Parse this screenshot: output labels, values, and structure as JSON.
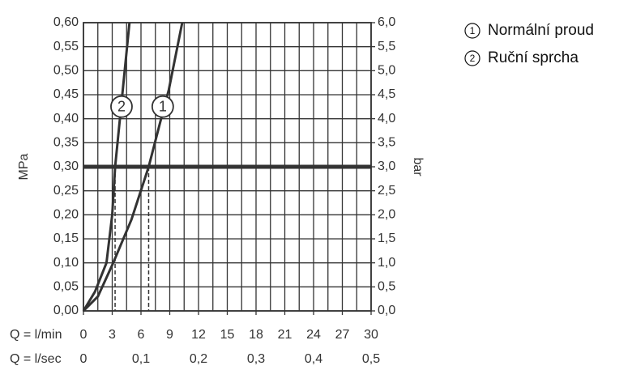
{
  "chart_data": {
    "type": "line",
    "x_label": "Q = l/min",
    "x2_label": "Q = l/sec",
    "y_label": "MPa",
    "y2_label": "bar",
    "xlim": [
      0,
      30
    ],
    "xticks": [
      0,
      3,
      6,
      9,
      12,
      15,
      18,
      21,
      24,
      27,
      30
    ],
    "xminorticks": [
      1.5,
      4.5,
      7.5,
      10.5,
      13.5,
      16.5,
      19.5,
      22.5,
      25.5,
      28.5
    ],
    "x2lim": [
      0,
      0.5
    ],
    "x2ticks": [
      0,
      {
        "value": 0.1,
        "label": "0,1"
      },
      {
        "value": 0.2,
        "label": "0,2"
      },
      {
        "value": 0.3,
        "label": "0,3"
      },
      {
        "value": 0.4,
        "label": "0,4"
      },
      {
        "value": 0.5,
        "label": "0,5"
      }
    ],
    "ylim": [
      0,
      0.6
    ],
    "yticks": [
      {
        "value": 0,
        "label": "0,00"
      },
      {
        "value": 0.05,
        "label": "0,05"
      },
      {
        "value": 0.1,
        "label": "0,10"
      },
      {
        "value": 0.15,
        "label": "0,15"
      },
      {
        "value": 0.2,
        "label": "0,20"
      },
      {
        "value": 0.25,
        "label": "0,25"
      },
      {
        "value": 0.3,
        "label": "0,30"
      },
      {
        "value": 0.35,
        "label": "0,35"
      },
      {
        "value": 0.4,
        "label": "0,40"
      },
      {
        "value": 0.45,
        "label": "0,45"
      },
      {
        "value": 0.5,
        "label": "0,50"
      },
      {
        "value": 0.55,
        "label": "0,55"
      },
      {
        "value": 0.6,
        "label": "0,60"
      }
    ],
    "y2lim": [
      0,
      6
    ],
    "y2ticks": [
      {
        "value": 0,
        "label": "0,0"
      },
      {
        "value": 0.5,
        "label": "0,5"
      },
      {
        "value": 1,
        "label": "1,0"
      },
      {
        "value": 1.5,
        "label": "1,5"
      },
      {
        "value": 2,
        "label": "2,0"
      },
      {
        "value": 2.5,
        "label": "2,5"
      },
      {
        "value": 3,
        "label": "3,0"
      },
      {
        "value": 3.5,
        "label": "3,5"
      },
      {
        "value": 4,
        "label": "4,0"
      },
      {
        "value": 4.5,
        "label": "4,5"
      },
      {
        "value": 5,
        "label": "5,0"
      },
      {
        "value": 5.5,
        "label": "5,5"
      },
      {
        "value": 6,
        "label": "6,0"
      }
    ],
    "grid": true,
    "reference_line": 0.3,
    "series": [
      {
        "name": "Normální proud",
        "marker": "1",
        "color": "#333333",
        "x": [
          0,
          1.5,
          3.1,
          5,
          6.8,
          8.1,
          8.9,
          10.3
        ],
        "values": [
          0,
          0.03,
          0.1,
          0.19,
          0.3,
          0.4,
          0.46,
          0.6
        ]
      },
      {
        "name": "Ruční sprcha",
        "marker": "2",
        "color": "#333333",
        "x": [
          0,
          1.2,
          2.4,
          3.0,
          3.3,
          3.8,
          4.2,
          4.8
        ],
        "values": [
          0,
          0.04,
          0.1,
          0.2,
          0.3,
          0.4,
          0.48,
          0.6
        ]
      }
    ]
  }
}
